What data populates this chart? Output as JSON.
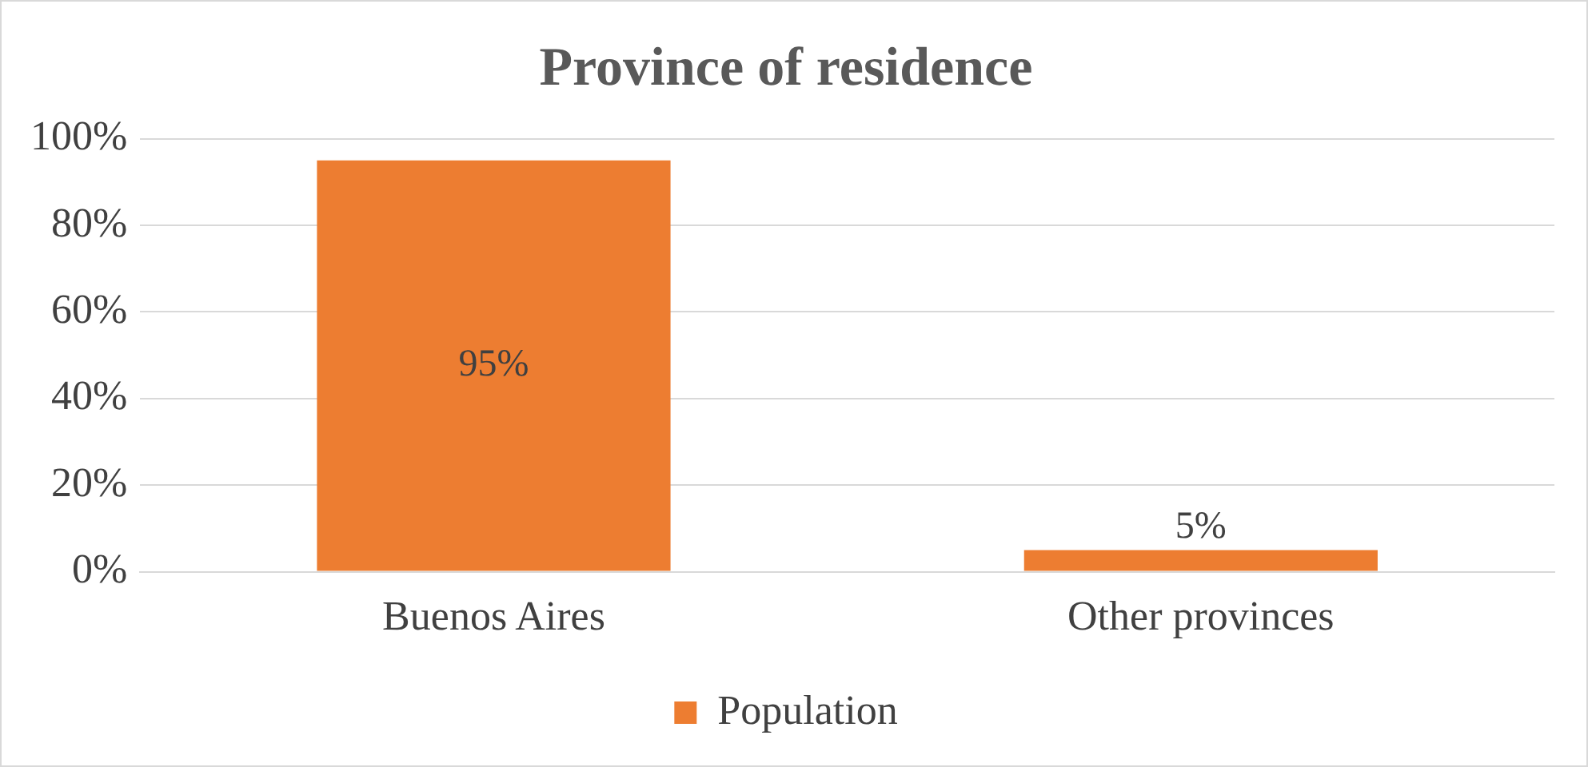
{
  "chart_data": {
    "type": "bar",
    "title": "Province of residence",
    "categories": [
      "Buenos Aires",
      "Other provinces"
    ],
    "series": [
      {
        "name": "Population",
        "color": "#ed7d31",
        "values": [
          95,
          5
        ],
        "value_labels": [
          "95%",
          "5%"
        ]
      }
    ],
    "ylim": [
      0,
      100
    ],
    "yticks": [
      {
        "value": 0,
        "label": "0%"
      },
      {
        "value": 20,
        "label": "20%"
      },
      {
        "value": 40,
        "label": "40%"
      },
      {
        "value": 60,
        "label": "60%"
      },
      {
        "value": 80,
        "label": "80%"
      },
      {
        "value": 100,
        "label": "100%"
      }
    ],
    "grid": "y",
    "legend": "bottom"
  }
}
